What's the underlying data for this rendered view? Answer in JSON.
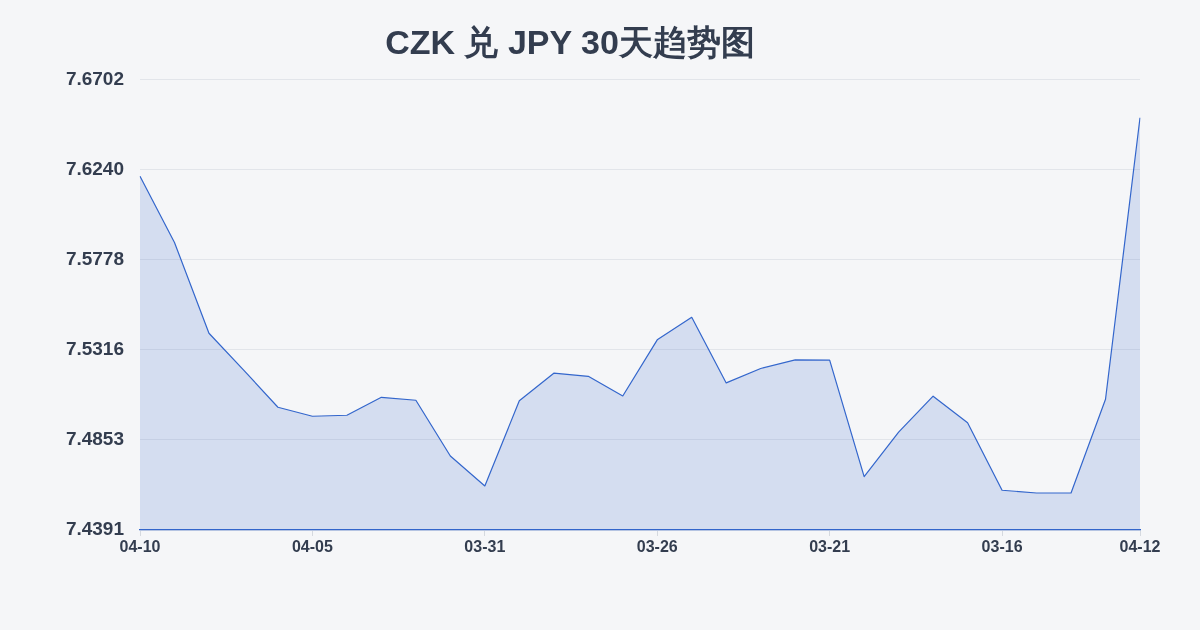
{
  "chart_data": {
    "type": "area",
    "title": "CZK 兑 JPY 30天趋势图",
    "categories": [
      "04-10",
      null,
      null,
      null,
      null,
      "04-05",
      null,
      null,
      null,
      null,
      "03-31",
      null,
      null,
      null,
      null,
      "03-26",
      null,
      null,
      null,
      null,
      "03-21",
      null,
      null,
      null,
      null,
      "03-16",
      null,
      null,
      null,
      "04-12"
    ],
    "series": [
      {
        "color": "#3366cc",
        "values": [
          7.6207,
          7.5867,
          7.5401,
          7.5213,
          7.5021,
          7.4975,
          7.498,
          7.5072,
          7.5057,
          7.4771,
          7.4617,
          7.5054,
          7.5196,
          7.518,
          7.5079,
          7.5367,
          7.5483,
          7.5146,
          7.522,
          7.5264,
          7.5263,
          7.4665,
          7.4893,
          7.5078,
          7.4942,
          7.4595,
          7.4581,
          7.4581,
          7.5062,
          7.6507
        ]
      }
    ],
    "ylim": [
      7.4391,
      7.6702
    ],
    "yticks": [
      7.4391,
      7.4853,
      7.5316,
      7.5778,
      {
        "value": 7.624,
        "label": "7.6240"
      },
      7.6702
    ],
    "grid": "y",
    "legend": false,
    "marker": "none"
  }
}
